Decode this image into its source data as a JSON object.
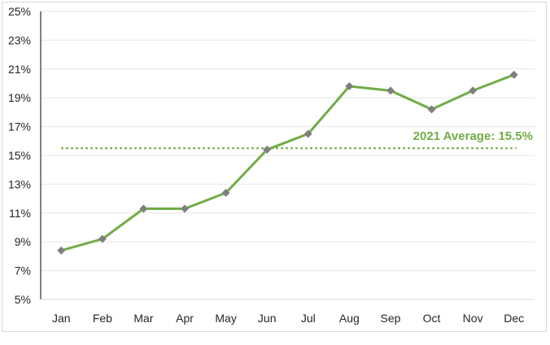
{
  "chart_data": {
    "type": "line",
    "title": "",
    "xlabel": "",
    "ylabel": "",
    "categories": [
      "Jan",
      "Feb",
      "Mar",
      "Apr",
      "May",
      "Jun",
      "Jul",
      "Aug",
      "Sep",
      "Oct",
      "Nov",
      "Dec"
    ],
    "series": [
      {
        "values": [
          8.4,
          9.2,
          11.3,
          11.3,
          12.4,
          15.4,
          16.5,
          19.8,
          19.5,
          18.2,
          19.5,
          20.6
        ],
        "color": "#70ad47",
        "marker_color": "#7f7f7f",
        "marker": "diamond"
      }
    ],
    "y_ticks": [
      "5%",
      "7%",
      "9%",
      "11%",
      "13%",
      "15%",
      "17%",
      "19%",
      "21%",
      "23%",
      "25%"
    ],
    "y_tick_values": [
      5,
      7,
      9,
      11,
      13,
      15,
      17,
      19,
      21,
      23,
      25
    ],
    "ylim": [
      5,
      25
    ],
    "grid": true,
    "grid_color": "#e6e6e6",
    "reference_line": {
      "value": 15.5,
      "label": "2021 Average: 15.5%",
      "color": "#70ad47",
      "style": "dotted"
    }
  }
}
